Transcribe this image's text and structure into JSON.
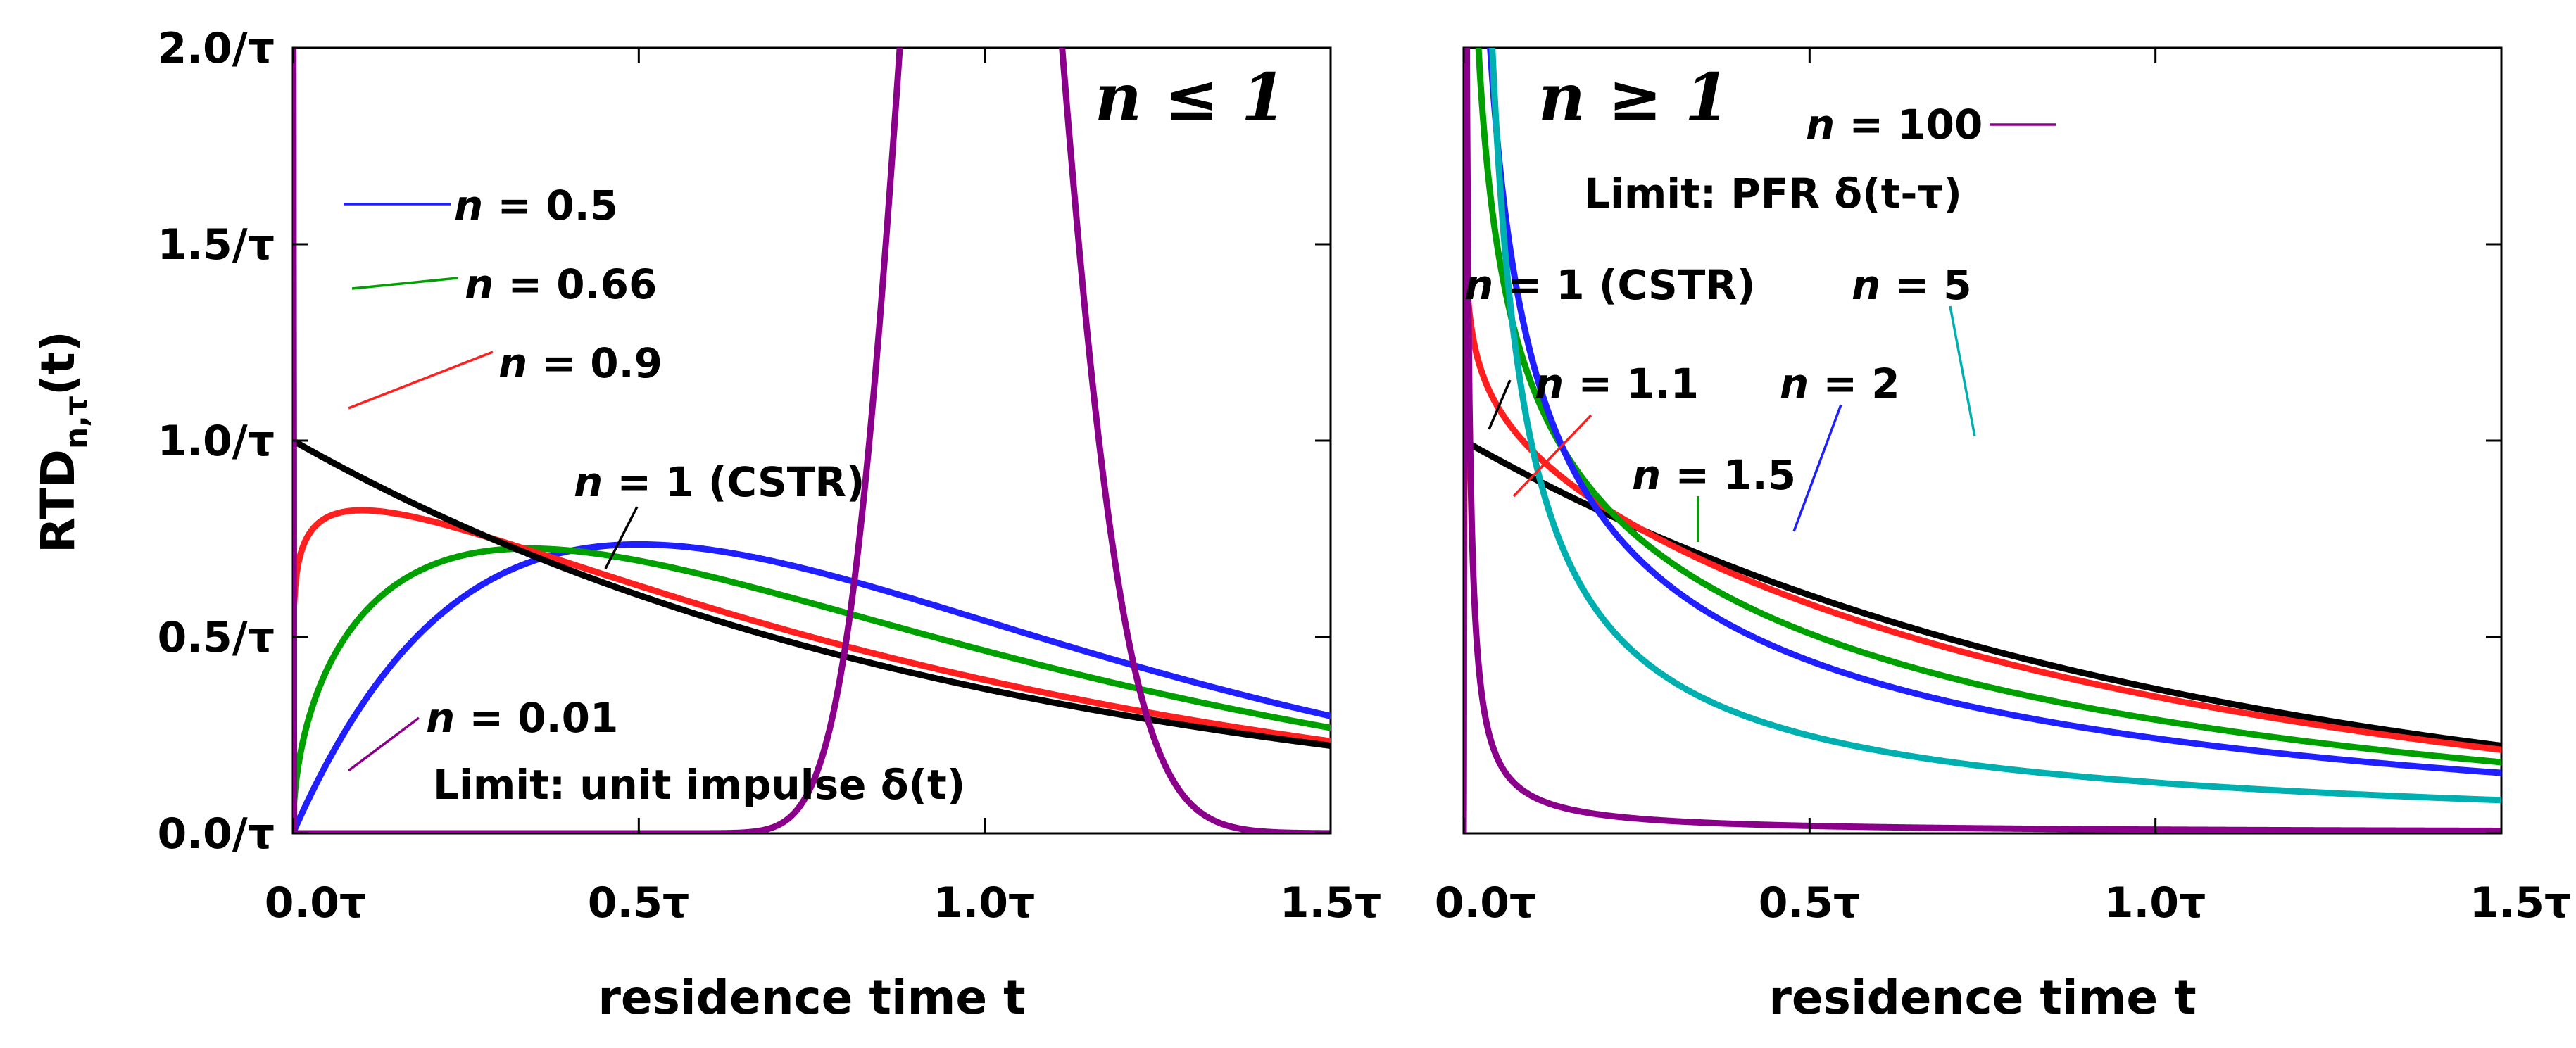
{
  "chart_data": [
    {
      "type": "line",
      "panel": "left",
      "title": "n ≤ 1",
      "xlabel": "residence time t",
      "ylabel": "RTD",
      "ylabel_sub": "n,τ",
      "ylabel_suffix": "(t)",
      "xlim": [
        0,
        1.5
      ],
      "ylim": [
        0,
        2.0
      ],
      "xticks": [
        0,
        0.5,
        1.0,
        1.5
      ],
      "xtick_labels": [
        "0.0τ",
        "0.5τ",
        "1.0τ",
        "1.5τ"
      ],
      "yticks": [
        0,
        0.5,
        1.0,
        1.5,
        2.0
      ],
      "ytick_labels": [
        "0.0/τ",
        "0.5/τ",
        "1.0/τ",
        "1.5/τ",
        "2.0/τ"
      ],
      "function": "gamma distribution: E(t) = t^(1/n - 1) * exp(-t/(n*tau)) / (Gamma(1/n) * (n*tau)^(1/n)), tau = 1",
      "series": [
        {
          "name": "n = 0.5",
          "n": 0.5,
          "color": "#1f1fff",
          "label_pre": "n",
          "label_post": " = 0.5"
        },
        {
          "name": "n = 0.66",
          "n": 0.66,
          "color": "#00a000",
          "label_pre": "n",
          "label_post": " = 0.66"
        },
        {
          "name": "n = 0.9",
          "n": 0.9,
          "color": "#ff1f1f",
          "label_pre": "n",
          "label_post": " = 0.9"
        },
        {
          "name": "n = 1 (CSTR)",
          "n": 1.0,
          "color": "#000000",
          "label_pre": "n",
          "label_post": " = 1 (CSTR)"
        },
        {
          "name": "n = 0.01",
          "n": 0.01,
          "color": "#8b008b",
          "label_pre": "n",
          "label_post": " = 0.01"
        }
      ],
      "annotations": [
        "Limit: unit impulse δ(t)"
      ]
    },
    {
      "type": "line",
      "panel": "right",
      "title": "n ≥ 1",
      "xlabel": "residence time t",
      "xlim": [
        0,
        1.5
      ],
      "ylim": [
        0,
        2.0
      ],
      "xticks": [
        0,
        0.5,
        1.0,
        1.5
      ],
      "xtick_labels": [
        "0.0τ",
        "0.5τ",
        "1.0τ",
        "1.5τ"
      ],
      "function": "gamma distribution: E(t) = t^(1/n - 1) * exp(-t/(n*tau)) / (Gamma(1/n) * (n*tau)^(1/n)), tau = 1",
      "series": [
        {
          "name": "n = 1 (CSTR)",
          "n": 1.0,
          "color": "#000000",
          "label_pre": "n",
          "label_post": " = 1 (CSTR)"
        },
        {
          "name": "n = 1.1",
          "n": 1.1,
          "color": "#ff1f1f",
          "label_pre": "n",
          "label_post": " = 1.1"
        },
        {
          "name": "n = 1.5",
          "n": 1.5,
          "color": "#00a000",
          "label_pre": "n",
          "label_post": " = 1.5"
        },
        {
          "name": "n = 2",
          "n": 2.0,
          "color": "#1f1fff",
          "label_pre": "n",
          "label_post": " = 2"
        },
        {
          "name": "n = 5",
          "n": 5.0,
          "color": "#00b0b0",
          "label_pre": "n",
          "label_post": " = 5"
        },
        {
          "name": "n = 100",
          "n": 100.0,
          "color": "#8b008b",
          "label_pre": "n",
          "label_post": " = 100"
        }
      ],
      "annotations": [
        "Limit: PFR δ(t-τ)"
      ]
    }
  ]
}
